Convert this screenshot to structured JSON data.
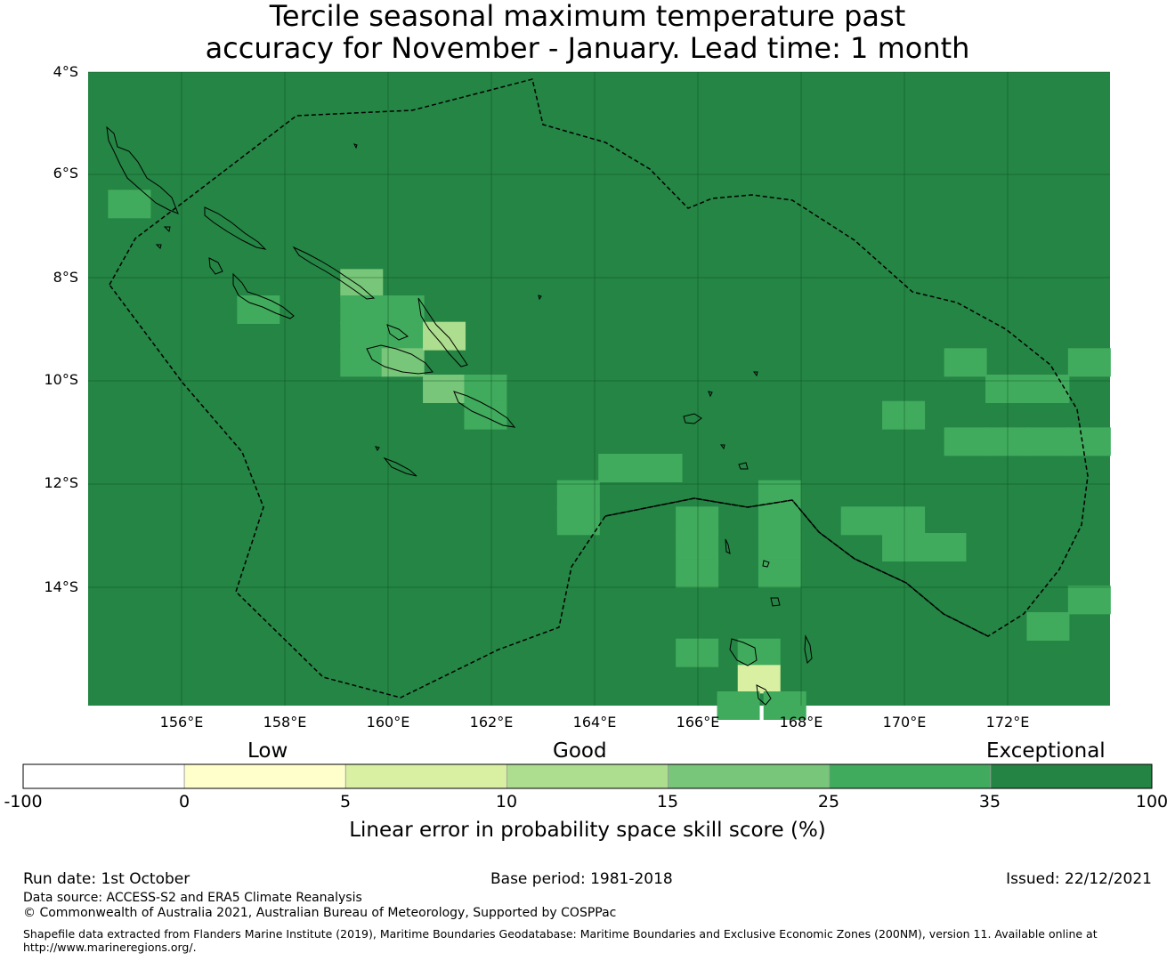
{
  "title": {
    "line1": "Tercile seasonal maximum temperature past",
    "line2": "accuracy for November - January. Lead time: 1 month"
  },
  "map": {
    "background_color": "#248544",
    "lat_labels": [
      "4°S",
      "6°S",
      "8°S",
      "10°S",
      "12°S",
      "14°S"
    ],
    "lon_labels": [
      "156°E",
      "158°E",
      "160°E",
      "162°E",
      "164°E",
      "166°E",
      "168°E",
      "170°E",
      "172°E"
    ],
    "lat_range": [
      -16.0,
      -4.0
    ],
    "lon_range": [
      154.2,
      174.0
    ],
    "gridlines": true,
    "grid_cells": [
      {
        "lon": 155.0,
        "lat": -6.5,
        "category": "25-35"
      },
      {
        "lon": 159.5,
        "lat": -8.0,
        "category": "15-25"
      },
      {
        "lon": 159.5,
        "lat": -8.5,
        "category": "25-35"
      },
      {
        "lon": 159.5,
        "lat": -9.0,
        "category": "25-35"
      },
      {
        "lon": 159.5,
        "lat": -9.5,
        "category": "25-35"
      },
      {
        "lon": 157.5,
        "lat": -8.5,
        "category": "25-35"
      },
      {
        "lon": 160.3,
        "lat": -8.5,
        "category": "25-35"
      },
      {
        "lon": 160.3,
        "lat": -9.0,
        "category": "25-35"
      },
      {
        "lon": 160.3,
        "lat": -9.5,
        "category": "15-25"
      },
      {
        "lon": 161.1,
        "lat": -9.0,
        "category": "10-15"
      },
      {
        "lon": 161.1,
        "lat": -10.0,
        "category": "15-25"
      },
      {
        "lon": 161.9,
        "lat": -10.0,
        "category": "25-35"
      },
      {
        "lon": 161.9,
        "lat": -10.5,
        "category": "25-35"
      },
      {
        "lon": 164.5,
        "lat": -11.5,
        "category": "25-35"
      },
      {
        "lon": 165.3,
        "lat": -11.5,
        "category": "25-35"
      },
      {
        "lon": 163.7,
        "lat": -12.0,
        "category": "25-35"
      },
      {
        "lon": 163.7,
        "lat": -12.5,
        "category": "25-35"
      },
      {
        "lon": 166.0,
        "lat": -12.5,
        "category": "25-35"
      },
      {
        "lon": 167.6,
        "lat": -12.0,
        "category": "25-35"
      },
      {
        "lon": 167.6,
        "lat": -12.5,
        "category": "25-35"
      },
      {
        "lon": 169.2,
        "lat": -12.5,
        "category": "25-35"
      },
      {
        "lon": 170.0,
        "lat": -12.5,
        "category": "25-35"
      },
      {
        "lon": 170.0,
        "lat": -13.0,
        "category": "25-35"
      },
      {
        "lon": 170.8,
        "lat": -13.0,
        "category": "25-35"
      },
      {
        "lon": 166.0,
        "lat": -13.0,
        "category": "25-35"
      },
      {
        "lon": 166.0,
        "lat": -13.5,
        "category": "25-35"
      },
      {
        "lon": 167.6,
        "lat": -13.0,
        "category": "25-35"
      },
      {
        "lon": 167.6,
        "lat": -13.5,
        "category": "25-35"
      },
      {
        "lon": 166.0,
        "lat": -15.0,
        "category": "25-35"
      },
      {
        "lon": 167.2,
        "lat": -15.0,
        "category": "25-35"
      },
      {
        "lon": 167.2,
        "lat": -15.5,
        "category": "5-10"
      },
      {
        "lon": 166.8,
        "lat": -16.0,
        "category": "25-35"
      },
      {
        "lon": 167.7,
        "lat": -16.0,
        "category": "25-35"
      },
      {
        "lon": 170.0,
        "lat": -10.5,
        "category": "25-35"
      },
      {
        "lon": 171.2,
        "lat": -9.5,
        "category": "25-35"
      },
      {
        "lon": 171.2,
        "lat": -11.0,
        "category": "25-35"
      },
      {
        "lon": 172.0,
        "lat": -10.0,
        "category": "25-35"
      },
      {
        "lon": 172.8,
        "lat": -10.0,
        "category": "25-35"
      },
      {
        "lon": 173.6,
        "lat": -9.5,
        "category": "25-35"
      },
      {
        "lon": 172.0,
        "lat": -11.0,
        "category": "25-35"
      },
      {
        "lon": 172.8,
        "lat": -11.0,
        "category": "25-35"
      },
      {
        "lon": 173.6,
        "lat": -11.0,
        "category": "25-35"
      },
      {
        "lon": 173.6,
        "lat": -14.0,
        "category": "25-35"
      },
      {
        "lon": 172.8,
        "lat": -14.5,
        "category": "25-35"
      }
    ]
  },
  "legend": {
    "words": {
      "low": "Low",
      "good": "Good",
      "exceptional": "Exceptional"
    },
    "ticks": [
      "-100",
      "0",
      "5",
      "10",
      "15",
      "25",
      "35",
      "100"
    ],
    "colors": [
      "#ffffff",
      "#ffffcc",
      "#d9f0a3",
      "#addd8e",
      "#78c679",
      "#41ab5d",
      "#238443"
    ],
    "label": "Linear error in probability space skill score (%)"
  },
  "footer": {
    "run_date": "Run date: 1st October",
    "base_period": "Base period: 1981-2018",
    "issued": "Issued: 22/12/2021",
    "data_source": "Data source: ACCESS-S2 and ERA5 Climate Reanalysis",
    "copyright": "© Commonwealth of Australia 2021, Australian Bureau of Meteorology, Supported by COSPPac",
    "shapefile_line1": "Shapefile data extracted from Flanders Marine Institute (2019), Maritime Boundaries Geodatabase: Maritime Boundaries and Exclusive Economic Zones (200NM), version 11. Available online at",
    "shapefile_line2": "http://www.marineregions.org/."
  }
}
